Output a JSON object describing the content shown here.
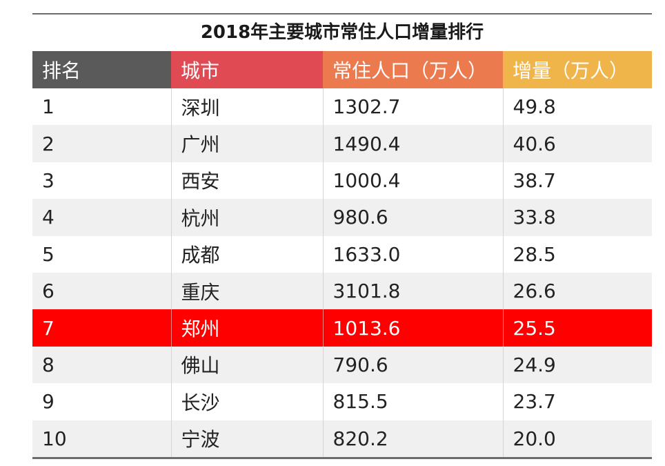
{
  "title": "2018年主要城市常住人口增量排行",
  "columns": [
    "排名",
    "城市",
    "常住人口（万人）",
    "增量（万人）"
  ],
  "header_colors": [
    "#5a5a5a",
    "#e04a53",
    "#ec7a4f",
    "#efb44a"
  ],
  "highlight_color": "#ff0000",
  "rows": [
    {
      "rank": "1",
      "city": "深圳",
      "population": "1302.7",
      "increase": "49.8",
      "highlight": false
    },
    {
      "rank": "2",
      "city": "广州",
      "population": "1490.4",
      "increase": "40.6",
      "highlight": false
    },
    {
      "rank": "3",
      "city": "西安",
      "population": "1000.4",
      "increase": "38.7",
      "highlight": false
    },
    {
      "rank": "4",
      "city": "杭州",
      "population": "980.6",
      "increase": "33.8",
      "highlight": false
    },
    {
      "rank": "5",
      "city": "成都",
      "population": "1633.0",
      "increase": "28.5",
      "highlight": false
    },
    {
      "rank": "6",
      "city": "重庆",
      "population": "3101.8",
      "increase": "26.6",
      "highlight": false
    },
    {
      "rank": "7",
      "city": "郑州",
      "population": "1013.6",
      "increase": "25.5",
      "highlight": true
    },
    {
      "rank": "8",
      "city": "佛山",
      "population": "790.6",
      "increase": "24.9",
      "highlight": false
    },
    {
      "rank": "9",
      "city": "长沙",
      "population": "815.5",
      "increase": "23.7",
      "highlight": false
    },
    {
      "rank": "10",
      "city": "宁波",
      "population": "820.2",
      "increase": "20.0",
      "highlight": false
    }
  ]
}
